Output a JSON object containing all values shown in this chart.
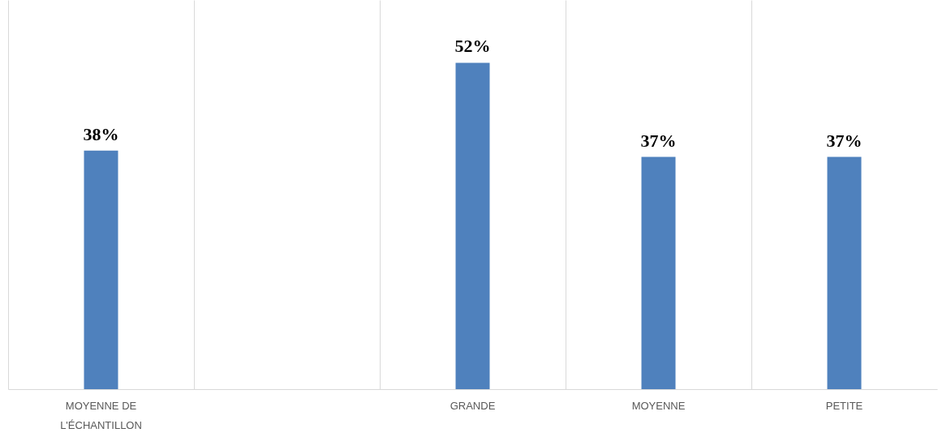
{
  "chart_data": {
    "type": "bar",
    "categories": [
      "MOYENNE DE L'ÉCHANTILLON",
      null,
      "GRANDE",
      "MOYENNE",
      "PETITE"
    ],
    "values": [
      38,
      null,
      52,
      37,
      37
    ],
    "value_labels": [
      "38%",
      null,
      "52%",
      "37%",
      "37%"
    ],
    "color": "#4f81bd",
    "ylim": [
      0,
      62
    ],
    "grid": "x",
    "tick_labels": "x"
  }
}
